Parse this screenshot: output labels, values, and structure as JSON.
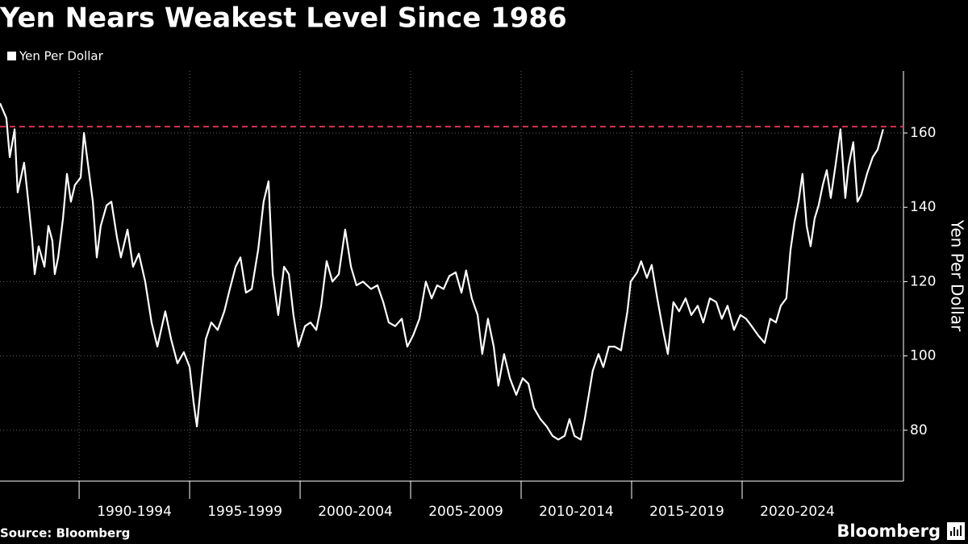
{
  "chart_data": {
    "type": "line",
    "title": "Yen Nears Weakest Level Since 1986",
    "y_label": "Yen Per Dollar",
    "source": "Source: Bloomberg",
    "brand": "Bloomberg",
    "xlim": [
      1986.42,
      2027.3
    ],
    "ylim": [
      66.3,
      176.7
    ],
    "yticks": [
      80,
      100,
      120,
      140,
      160
    ],
    "xticks": [
      {
        "value": 1990,
        "label": "1990-1994"
      },
      {
        "value": 1995,
        "label": "1995-1999"
      },
      {
        "value": 2000,
        "label": "2000-2004"
      },
      {
        "value": 2005,
        "label": "2005-2009"
      },
      {
        "value": 2010,
        "label": "2010-2014"
      },
      {
        "value": 2015,
        "label": "2015-2019"
      },
      {
        "value": 2020,
        "label": "2020-2024"
      }
    ],
    "grid": true,
    "reference_line": {
      "value": 161.7,
      "color": "#d8344f"
    },
    "series": [
      {
        "name": "Yen Per Dollar",
        "color": "#ffffff",
        "x": [
          1986.42,
          1986.71,
          1986.86,
          1987.08,
          1987.22,
          1987.51,
          1987.7,
          1987.88,
          1987.99,
          1988.17,
          1988.43,
          1988.61,
          1988.79,
          1988.9,
          1989.05,
          1989.27,
          1989.45,
          1989.63,
          1989.81,
          1990.07,
          1990.22,
          1990.36,
          1990.62,
          1990.8,
          1990.98,
          1991.24,
          1991.46,
          1991.71,
          1991.89,
          1992.19,
          1992.44,
          1992.7,
          1992.99,
          1993.28,
          1993.54,
          1993.9,
          1994.16,
          1994.45,
          1994.74,
          1995.0,
          1995.18,
          1995.33,
          1995.54,
          1995.73,
          1995.98,
          1996.27,
          1996.57,
          1996.82,
          1997.08,
          1997.3,
          1997.55,
          1997.81,
          1998.1,
          1998.35,
          1998.57,
          1998.76,
          1999.01,
          1999.27,
          1999.49,
          1999.7,
          1999.92,
          2000.22,
          2000.47,
          2000.73,
          2000.95,
          2001.2,
          2001.46,
          2001.75,
          2002.04,
          2002.3,
          2002.55,
          2002.84,
          2003.21,
          2003.5,
          2003.76,
          2004.01,
          2004.3,
          2004.6,
          2004.85,
          2005.11,
          2005.4,
          2005.69,
          2005.95,
          2006.2,
          2006.49,
          2006.75,
          2007.04,
          2007.3,
          2007.51,
          2007.77,
          2008.03,
          2008.24,
          2008.5,
          2008.76,
          2008.97,
          2009.23,
          2009.49,
          2009.78,
          2010.07,
          2010.33,
          2010.58,
          2010.87,
          2011.16,
          2011.42,
          2011.68,
          2011.97,
          2012.19,
          2012.41,
          2012.7,
          2012.88,
          2013.06,
          2013.24,
          2013.5,
          2013.72,
          2013.97,
          2014.23,
          2014.52,
          2014.81,
          2014.96,
          2015.25,
          2015.43,
          2015.69,
          2015.91,
          2016.16,
          2016.42,
          2016.64,
          2016.89,
          2017.15,
          2017.44,
          2017.7,
          2017.99,
          2018.24,
          2018.54,
          2018.83,
          2019.08,
          2019.34,
          2019.63,
          2019.92,
          2020.18,
          2020.43,
          2020.73,
          2021.02,
          2021.27,
          2021.53,
          2021.75,
          2022.0,
          2022.19,
          2022.37,
          2022.55,
          2022.73,
          2022.92,
          2023.1,
          2023.28,
          2023.46,
          2023.65,
          2023.83,
          2024.01,
          2024.23,
          2024.45,
          2024.67,
          2024.81,
          2025.03,
          2025.22,
          2025.4,
          2025.65,
          2025.91,
          2026.13,
          2026.38
        ],
        "values": [
          168,
          164,
          153.5,
          161,
          144,
          152,
          141.5,
          131,
          122,
          129.5,
          124,
          135,
          131,
          122,
          126.5,
          137,
          149,
          141.5,
          146,
          148,
          160,
          153.5,
          141.5,
          126.5,
          135,
          140.5,
          141.5,
          132,
          126.5,
          134,
          124,
          127.5,
          120,
          109,
          102.5,
          112,
          104.5,
          98,
          101,
          97,
          87.5,
          81,
          94,
          104.5,
          109,
          107,
          112,
          118,
          124,
          126.5,
          117,
          118,
          128.5,
          141.5,
          147,
          122,
          111,
          124,
          122,
          111,
          102.5,
          108,
          109,
          107,
          113.5,
          125.5,
          120,
          122,
          134,
          124,
          119,
          120,
          118,
          119,
          114.5,
          109,
          108,
          110,
          102.5,
          105.5,
          110,
          120,
          115.5,
          119,
          118,
          121.5,
          122.5,
          117,
          123,
          115.5,
          111,
          100.5,
          110,
          102.5,
          92,
          100.5,
          94,
          89.5,
          94,
          92.5,
          86,
          83,
          81,
          78.5,
          77.5,
          78.5,
          83,
          78.5,
          77.5,
          83,
          89.5,
          96,
          100.5,
          97,
          102.5,
          102.5,
          101.5,
          112,
          120,
          122.5,
          125.5,
          121,
          124.5,
          115.5,
          107,
          100.5,
          114.5,
          112,
          115.5,
          111,
          113.5,
          109,
          115.5,
          114.5,
          110,
          113.5,
          107,
          111,
          110,
          108,
          105.5,
          103.5,
          110,
          109,
          113.5,
          115.5,
          128.5,
          136,
          141.5,
          149,
          135,
          129.5,
          137,
          140.5,
          146,
          150,
          142.5,
          151.5,
          161,
          142.5,
          151,
          157.5,
          141.5,
          143.5,
          149,
          153.5,
          155.5,
          161
        ]
      }
    ]
  }
}
